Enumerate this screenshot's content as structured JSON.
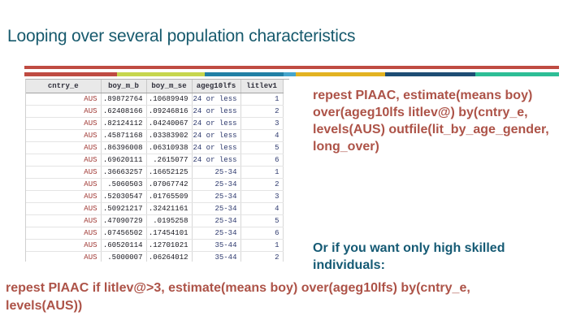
{
  "slide": {
    "title": "Looping over several population characteristics",
    "colors": {
      "title_text": "#175a6d",
      "code_text": "#ad5348",
      "prompt_text": "#155a74",
      "rule_red": "#bf4b42"
    }
  },
  "decor": {
    "rule_top_color": "#bf4b42",
    "rule_segments": [
      {
        "name": "red",
        "color": "#bf4b42",
        "weight": 17.3
      },
      {
        "name": "yellow-green",
        "color": "#c6d64e",
        "weight": 16.5
      },
      {
        "name": "teal-blue",
        "color": "#2180a5",
        "weight": 14.7
      },
      {
        "name": "light-blue",
        "color": "#45a5cc",
        "weight": 2.3
      },
      {
        "name": "yellow",
        "color": "#e3b322",
        "weight": 16.7
      },
      {
        "name": "navy",
        "color": "#1e4d74",
        "weight": 16.8
      },
      {
        "name": "green",
        "color": "#2dbe96",
        "weight": 15.7
      }
    ]
  },
  "table": {
    "headers": [
      "cntry_e",
      "boy_m_b",
      "boy_m_se",
      "ageg10lfs",
      "litlev1"
    ],
    "colors": {
      "string_value": "#9e3430",
      "numeric_value": "#17171f",
      "label_value": "#2e3a6e",
      "header_bg": "#e9e9e9"
    },
    "rows": [
      {
        "cntry_e": "AUS",
        "boy_m_b": ".89872764",
        "boy_m_se": ".10689949",
        "ageg10lfs": "24 or less",
        "litlev1": "1"
      },
      {
        "cntry_e": "AUS",
        "boy_m_b": ".62408166",
        "boy_m_se": ".09246816",
        "ageg10lfs": "24 or less",
        "litlev1": "2"
      },
      {
        "cntry_e": "AUS",
        "boy_m_b": ".82124112",
        "boy_m_se": ".04240067",
        "ageg10lfs": "24 or less",
        "litlev1": "3"
      },
      {
        "cntry_e": "AUS",
        "boy_m_b": ".45871168",
        "boy_m_se": ".03383902",
        "ageg10lfs": "24 or less",
        "litlev1": "4"
      },
      {
        "cntry_e": "AUS",
        "boy_m_b": ".86396008",
        "boy_m_se": ".06310938",
        "ageg10lfs": "24 or less",
        "litlev1": "5"
      },
      {
        "cntry_e": "AUS",
        "boy_m_b": ".69620111",
        "boy_m_se": ".2615077",
        "ageg10lfs": "24 or less",
        "litlev1": "6"
      },
      {
        "cntry_e": "AUS",
        "boy_m_b": ".36663257",
        "boy_m_se": ".16652125",
        "ageg10lfs": "25-34",
        "litlev1": "1"
      },
      {
        "cntry_e": "AUS",
        "boy_m_b": ".5060503",
        "boy_m_se": ".07067742",
        "ageg10lfs": "25-34",
        "litlev1": "2"
      },
      {
        "cntry_e": "AUS",
        "boy_m_b": ".52030547",
        "boy_m_se": ".01765509",
        "ageg10lfs": "25-34",
        "litlev1": "3"
      },
      {
        "cntry_e": "AUS",
        "boy_m_b": ".50921217",
        "boy_m_se": ".32421161",
        "ageg10lfs": "25-34",
        "litlev1": "4"
      },
      {
        "cntry_e": "AUS",
        "boy_m_b": ".47090729",
        "boy_m_se": ".0195258",
        "ageg10lfs": "25-34",
        "litlev1": "5"
      },
      {
        "cntry_e": "AUS",
        "boy_m_b": ".07456502",
        "boy_m_se": ".17454101",
        "ageg10lfs": "25-34",
        "litlev1": "6"
      },
      {
        "cntry_e": "AUS",
        "boy_m_b": ".60520114",
        "boy_m_se": ".12701021",
        "ageg10lfs": "35-44",
        "litlev1": "1"
      },
      {
        "cntry_e": "AUS",
        "boy_m_b": ".5000007",
        "boy_m_se": ".06264012",
        "ageg10lfs": "35-44",
        "litlev1": "2"
      }
    ]
  },
  "code_over": {
    "lines": [
      "repest PIAAC, estimate(means boy)",
      "over(ageg10lfs litlev@) by(cntry_e,",
      "levels(AUS) outfile(lit_by_age_gender,",
      "long_over)"
    ]
  },
  "prompt": {
    "lines": [
      "Or if you want only high skilled",
      "individuals:"
    ]
  },
  "code_filter": {
    "lines": [
      "repest PIAAC if litlev@>3, estimate(means boy) over(ageg10lfs) by(cntry_e,",
      "levels(AUS))"
    ]
  }
}
